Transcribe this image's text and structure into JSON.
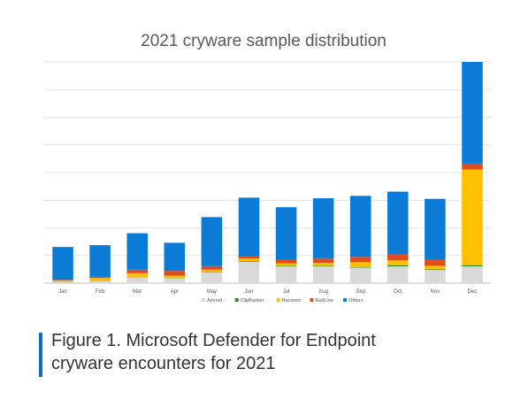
{
  "chart_data": {
    "type": "bar",
    "stacked": true,
    "title": "2021 cryware sample distribution",
    "categories": [
      "Jan",
      "Feb",
      "Mar",
      "Apr",
      "May",
      "Jun",
      "Jul",
      "Aug",
      "Sep",
      "Oct",
      "Nov",
      "Dec"
    ],
    "series": [
      {
        "name": "Azorult",
        "color": "#d9d9d9",
        "values": [
          2,
          4,
          10,
          8,
          18,
          36,
          28,
          28,
          26,
          28,
          22,
          28
        ]
      },
      {
        "name": "ClipBanker",
        "color": "#2e8b2e",
        "values": [
          0.5,
          0.5,
          0.5,
          0.5,
          0.5,
          1,
          1,
          1,
          1,
          2,
          1,
          2
        ]
      },
      {
        "name": "Raccoon",
        "color": "#ffc000",
        "values": [
          2,
          4,
          6,
          4,
          4,
          4,
          4,
          5,
          8,
          8,
          6,
          160
        ]
      },
      {
        "name": "RedLine",
        "color": "#e04c1b",
        "values": [
          1,
          2,
          6,
          8,
          6,
          4,
          6,
          7,
          9,
          10,
          10,
          10
        ]
      },
      {
        "name": "Others",
        "color": "#0c7bd6",
        "values": [
          55,
          53,
          61,
          47,
          82,
          98,
          88,
          101,
          102,
          105,
          102,
          170
        ]
      }
    ],
    "ylim": [
      0,
      370
    ],
    "grid": true,
    "legend": "bottom"
  },
  "caption": {
    "line1": "Figure 1. Microsoft Defender for Endpoint",
    "line2": "cryware encounters for 2021",
    "accent": "#0b6ec8"
  }
}
